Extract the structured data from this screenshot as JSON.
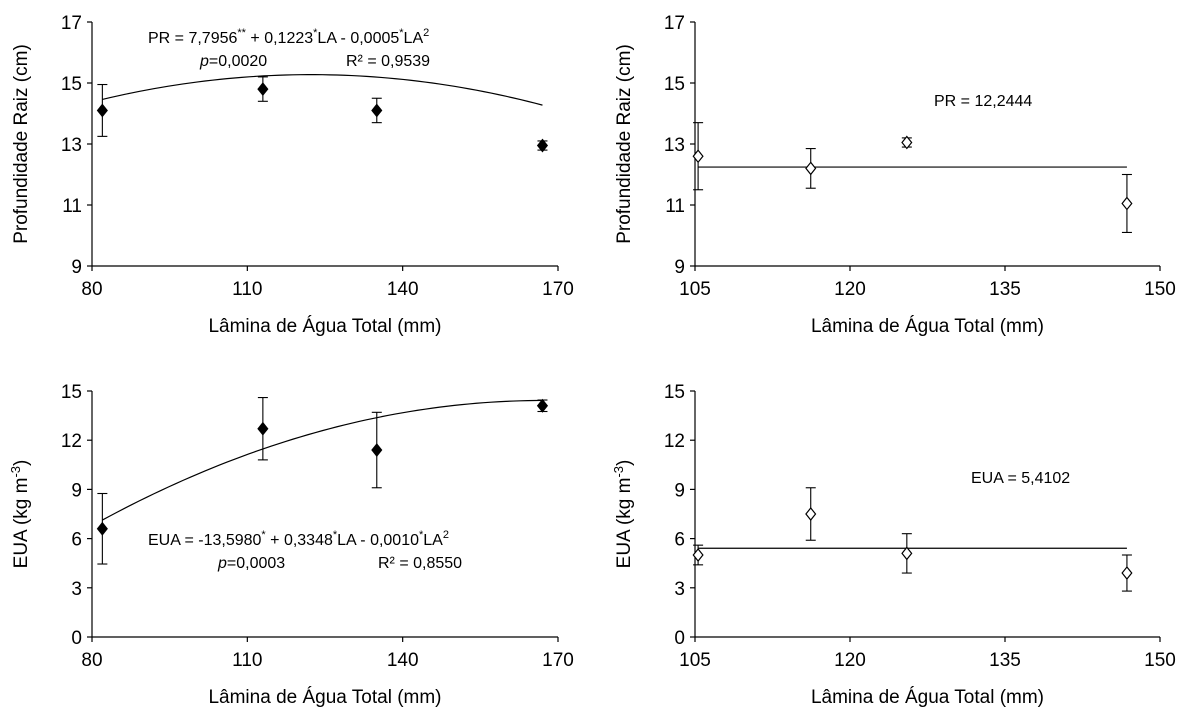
{
  "chart_data": [
    {
      "id": "pr-left",
      "type": "scatter",
      "marker": "filled-diamond",
      "ylabel": "Profundidade Raiz (cm)",
      "xlabel": "Lâmina de Água Total (mm)",
      "xlim": [
        80,
        170
      ],
      "xticks": [
        80,
        110,
        140,
        170
      ],
      "ylim": [
        9,
        17
      ],
      "yticks": [
        9,
        11,
        13,
        15,
        17
      ],
      "grid": false,
      "points": [
        {
          "x": 82,
          "y": 14.1,
          "err": 0.85
        },
        {
          "x": 113,
          "y": 14.8,
          "err": 0.4
        },
        {
          "x": 135,
          "y": 14.1,
          "err": 0.4
        },
        {
          "x": 167,
          "y": 12.95,
          "err": 0.15
        }
      ],
      "fit": {
        "type": "quadratic",
        "a": 7.7956,
        "b": 0.1223,
        "c": -0.0005,
        "x_range": [
          82,
          167
        ]
      },
      "equation": {
        "line1": [
          "PR = 7,7956",
          "**",
          " + 0,1223",
          "*",
          "LA - 0,0005",
          "*",
          "LA",
          "2"
        ],
        "p_label": "p",
        "p_value": "=0,0020",
        "r2": "R² = 0,9539"
      }
    },
    {
      "id": "pr-right",
      "type": "scatter",
      "marker": "open-diamond",
      "ylabel": "Profundidade Raiz (cm)",
      "xlabel": "Lâmina de Água Total (mm)",
      "xlim": [
        105,
        150
      ],
      "xticks": [
        105,
        120,
        135,
        150
      ],
      "ylim": [
        9,
        17
      ],
      "yticks": [
        9,
        11,
        13,
        15,
        17
      ],
      "grid": false,
      "points": [
        {
          "x": 105.3,
          "y": 12.6,
          "err": 1.1
        },
        {
          "x": 116.2,
          "y": 12.2,
          "err": 0.65
        },
        {
          "x": 125.5,
          "y": 13.05,
          "err": 0.15
        },
        {
          "x": 146.8,
          "y": 11.05,
          "err": 0.95
        }
      ],
      "fit": {
        "type": "constant",
        "value": 12.2444,
        "x_range": [
          105.3,
          146.8
        ]
      },
      "equation": {
        "line1": "PR = 12,2444"
      }
    },
    {
      "id": "eua-left",
      "type": "scatter",
      "marker": "filled-diamond",
      "ylabel": "EUA (kg m-3)",
      "ylabel_parts": [
        "EUA (kg m",
        "-3",
        ")"
      ],
      "xlabel": "Lâmina de Água Total (mm)",
      "xlim": [
        80,
        170
      ],
      "xticks": [
        80,
        110,
        140,
        170
      ],
      "ylim": [
        0,
        15
      ],
      "yticks": [
        0,
        3,
        6,
        9,
        12,
        15
      ],
      "grid": false,
      "points": [
        {
          "x": 82,
          "y": 6.6,
          "err": 2.15
        },
        {
          "x": 113,
          "y": 12.7,
          "err": 1.9
        },
        {
          "x": 135,
          "y": 11.4,
          "err": 2.3
        },
        {
          "x": 167,
          "y": 14.1,
          "err": 0.35
        }
      ],
      "fit": {
        "type": "quadratic",
        "a": -13.598,
        "b": 0.3348,
        "c": -0.001,
        "x_range": [
          82,
          167
        ]
      },
      "equation": {
        "line1": [
          "EUA = -13,5980",
          "*",
          " + 0,3348",
          "*",
          "LA - 0,0010",
          "*",
          "LA",
          "2"
        ],
        "p_label": "p",
        "p_value": "=0,0003",
        "r2": "R² = 0,8550"
      }
    },
    {
      "id": "eua-right",
      "type": "scatter",
      "marker": "open-diamond",
      "ylabel": "EUA (kg m-3)",
      "ylabel_parts": [
        "EUA (kg m",
        "-3",
        ")"
      ],
      "xlabel": "Lâmina de Água Total (mm)",
      "xlim": [
        105,
        150
      ],
      "xticks": [
        105,
        120,
        135,
        150
      ],
      "ylim": [
        0,
        15
      ],
      "yticks": [
        0,
        3,
        6,
        9,
        12,
        15
      ],
      "grid": false,
      "points": [
        {
          "x": 105.3,
          "y": 5.0,
          "err": 0.6
        },
        {
          "x": 116.2,
          "y": 7.5,
          "err": 1.6
        },
        {
          "x": 125.5,
          "y": 5.1,
          "err": 1.2
        },
        {
          "x": 146.8,
          "y": 3.9,
          "err": 1.1
        }
      ],
      "fit": {
        "type": "constant",
        "value": 5.4102,
        "x_range": [
          105.3,
          146.8
        ]
      },
      "equation": {
        "line1": "EUA = 5,4102"
      }
    }
  ]
}
